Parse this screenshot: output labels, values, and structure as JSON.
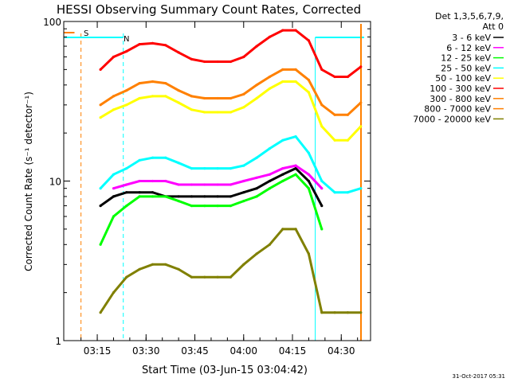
{
  "chart_data": {
    "type": "line",
    "title": "HESSI Observing Summary Count Rates, Corrected",
    "xlabel": "Start Time (03-Jun-15 03:04:42)",
    "ylabel": "Corrected Count Rate (s⁻¹ detector⁻¹)",
    "x_ticks": [
      "03:15",
      "03:30",
      "03:45",
      "04:00",
      "04:15",
      "04:30"
    ],
    "x_range": [
      "03:04:42",
      "04:39:00"
    ],
    "y_ticks": [
      "1",
      "10",
      "100"
    ],
    "ylim": [
      1,
      100
    ],
    "y_scale": "log",
    "legend_header": [
      "Det 1,3,5,6,7,9,",
      "Att 0"
    ],
    "legend_position": "right",
    "footer": "31-Oct-2017 05:31",
    "flags": [
      {
        "label": "S",
        "color": "#ff8000"
      },
      {
        "label": "N",
        "color": "#00ffff"
      }
    ],
    "x": [
      "03:08",
      "03:12",
      "03:16",
      "03:20",
      "03:24",
      "03:28",
      "03:32",
      "03:36",
      "03:40",
      "03:44",
      "03:48",
      "03:52",
      "03:56",
      "04:00",
      "04:04",
      "04:08",
      "04:12",
      "04:16",
      "04:20",
      "04:24",
      "04:28",
      "04:32",
      "04:36"
    ],
    "series": [
      {
        "name": "3 - 6 keV",
        "color": "#000000",
        "values": [
          null,
          null,
          null,
          null,
          null,
          null,
          null,
          null,
          null,
          null,
          null,
          null,
          null,
          null,
          null,
          null,
          null,
          null,
          null,
          null,
          null,
          null,
          null
        ]
      },
      {
        "name": "6 - 12 keV",
        "color": "#ff00ff",
        "values": [
          null,
          null,
          null,
          9,
          9.5,
          10,
          10,
          10,
          9.5,
          9.5,
          9.5,
          9.5,
          9.5,
          10,
          10.5,
          11,
          12,
          12.5,
          11,
          9,
          null,
          null,
          null
        ]
      },
      {
        "name": "12 - 25 keV",
        "color": "#00ff00",
        "values": [
          null,
          null,
          4,
          6,
          7,
          8,
          8,
          8,
          7.5,
          7,
          7,
          7,
          7,
          7.5,
          8,
          9,
          10,
          11,
          9,
          5,
          null,
          null,
          null
        ]
      },
      {
        "name": "25 - 50 keV",
        "color": "#00ffff",
        "values": [
          null,
          null,
          9,
          11,
          12,
          13.5,
          14,
          14,
          13,
          12,
          12,
          12,
          12,
          12.5,
          14,
          16,
          18,
          19,
          15,
          10,
          8.5,
          8.5,
          9
        ]
      },
      {
        "name": "50 - 100 keV",
        "color": "#ffff00",
        "values": [
          null,
          null,
          25,
          28,
          30,
          33,
          34,
          34,
          31,
          28,
          27,
          27,
          27,
          29,
          33,
          38,
          42,
          42,
          36,
          22,
          18,
          18,
          22
        ]
      },
      {
        "name": "100 - 300 keV",
        "color": "#ff0000",
        "values": [
          null,
          null,
          50,
          60,
          65,
          72,
          73,
          71,
          64,
          58,
          56,
          56,
          56,
          60,
          70,
          80,
          88,
          88,
          76,
          50,
          45,
          45,
          52
        ]
      },
      {
        "name": "300 - 800 keV",
        "color": "#ff8000",
        "values": [
          null,
          null,
          30,
          34,
          37,
          41,
          42,
          41,
          37,
          34,
          33,
          33,
          33,
          35,
          40,
          45,
          50,
          50,
          43,
          30,
          26,
          26,
          31
        ]
      },
      {
        "name": "800 - 7000 keV",
        "color": "#ff8000",
        "values": [
          null,
          null,
          null,
          null,
          null,
          null,
          null,
          null,
          null,
          null,
          null,
          null,
          null,
          null,
          null,
          null,
          null,
          null,
          null,
          null,
          null,
          null,
          null
        ]
      },
      {
        "name": "7000 - 20000 keV",
        "color": "#808000",
        "values": [
          null,
          null,
          1.5,
          2,
          2.5,
          2.8,
          3,
          3,
          2.8,
          2.5,
          2.5,
          2.5,
          2.5,
          3,
          3.5,
          4,
          5,
          5,
          3.5,
          1.5,
          1.5,
          1.5,
          1.5
        ]
      }
    ],
    "series_visible_black": [
      null,
      null,
      7,
      8,
      8.5,
      8.5,
      8.5,
      8,
      8,
      8,
      8,
      8,
      8,
      8.5,
      9,
      10,
      11,
      12,
      10,
      7,
      null,
      null,
      null
    ]
  }
}
